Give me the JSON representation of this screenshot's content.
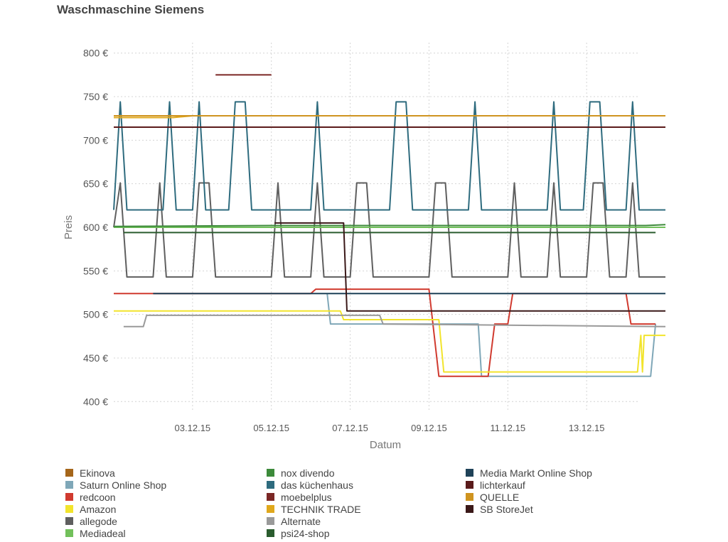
{
  "chart_data": {
    "type": "line",
    "title": "Waschmaschine Siemens",
    "xlabel": "Datum",
    "ylabel": "Preis",
    "ylim": [
      388,
      812
    ],
    "xlim": [
      "2015-12-01T00:00",
      "2015-12-15T00:00"
    ],
    "yticks": [
      400,
      450,
      500,
      550,
      600,
      650,
      700,
      750,
      800
    ],
    "ytick_labels": [
      "400 €",
      "450 €",
      "500 €",
      "550 €",
      "600 €",
      "650 €",
      "700 €",
      "750 €",
      "800 €"
    ],
    "xticks": [
      "2015-12-03",
      "2015-12-05",
      "2015-12-07",
      "2015-12-09",
      "2015-12-11",
      "2015-12-13"
    ],
    "xtick_labels": [
      "03.12.15",
      "05.12.15",
      "07.12.15",
      "09.12.15",
      "11.12.15",
      "13.12.15"
    ],
    "grid": true,
    "legend_position": "bottom",
    "series": [
      {
        "name": "Ekinova",
        "color": "#a5661a",
        "points": []
      },
      {
        "name": "Saturn Online Shop",
        "color": "#7fa7b8",
        "points": [
          [
            "2015-12-06T10:00",
            524
          ],
          [
            "2015-12-06T12:00",
            489
          ],
          [
            "2015-12-10T06:00",
            489
          ],
          [
            "2015-12-10T08:00",
            429
          ],
          [
            "2015-12-14T15:00",
            429
          ],
          [
            "2015-12-14T18:00",
            489
          ]
        ]
      },
      {
        "name": "redcoon",
        "color": "#d03a2f",
        "points": [
          [
            "2015-12-01T00:00",
            524
          ],
          [
            "2015-12-02T00:00",
            524
          ],
          [
            "2015-12-06T00:00",
            524
          ],
          [
            "2015-12-06T03:00",
            529
          ],
          [
            "2015-12-09T00:00",
            529
          ],
          [
            "2015-12-09T06:00",
            429
          ],
          [
            "2015-12-10T12:00",
            429
          ],
          [
            "2015-12-10T16:00",
            489
          ],
          [
            "2015-12-11T00:00",
            489
          ],
          [
            "2015-12-11T03:00",
            524
          ],
          [
            "2015-12-14T00:00",
            524
          ],
          [
            "2015-12-14T03:00",
            489
          ],
          [
            "2015-12-14T18:00",
            489
          ]
        ]
      },
      {
        "name": "Amazon",
        "color": "#f2e42c",
        "points": [
          [
            "2015-12-01T00:00",
            504
          ],
          [
            "2015-12-06T18:00",
            504
          ],
          [
            "2015-12-06T20:00",
            494
          ],
          [
            "2015-12-09T06:00",
            494
          ],
          [
            "2015-12-09T09:00",
            434
          ],
          [
            "2015-12-14T07:00",
            434
          ],
          [
            "2015-12-14T09:00",
            476
          ],
          [
            "2015-12-14T10:00",
            434
          ],
          [
            "2015-12-14T11:00",
            476
          ],
          [
            "2015-12-15T00:00",
            476
          ]
        ]
      },
      {
        "name": "allegode",
        "color": "#5f5f5f",
        "points": [
          [
            "2015-12-01T00:00",
            600
          ],
          [
            "2015-12-01T04:00",
            651
          ],
          [
            "2015-12-01T08:00",
            543
          ],
          [
            "2015-12-02T00:00",
            543
          ],
          [
            "2015-12-02T04:00",
            651
          ],
          [
            "2015-12-02T08:00",
            543
          ],
          [
            "2015-12-03T00:00",
            543
          ],
          [
            "2015-12-03T04:00",
            651
          ],
          [
            "2015-12-03T10:00",
            651
          ],
          [
            "2015-12-03T14:00",
            543
          ],
          [
            "2015-12-05T00:00",
            543
          ],
          [
            "2015-12-05T04:00",
            651
          ],
          [
            "2015-12-05T08:00",
            543
          ],
          [
            "2015-12-06T00:00",
            543
          ],
          [
            "2015-12-06T04:00",
            651
          ],
          [
            "2015-12-06T08:00",
            543
          ],
          [
            "2015-12-07T00:00",
            543
          ],
          [
            "2015-12-07T04:00",
            651
          ],
          [
            "2015-12-07T10:00",
            651
          ],
          [
            "2015-12-07T14:00",
            543
          ],
          [
            "2015-12-09T00:00",
            543
          ],
          [
            "2015-12-09T04:00",
            651
          ],
          [
            "2015-12-09T10:00",
            651
          ],
          [
            "2015-12-09T14:00",
            543
          ],
          [
            "2015-12-11T00:00",
            543
          ],
          [
            "2015-12-11T04:00",
            651
          ],
          [
            "2015-12-11T08:00",
            543
          ],
          [
            "2015-12-12T00:00",
            543
          ],
          [
            "2015-12-12T04:00",
            651
          ],
          [
            "2015-12-12T08:00",
            543
          ],
          [
            "2015-12-13T00:00",
            543
          ],
          [
            "2015-12-13T04:00",
            651
          ],
          [
            "2015-12-13T10:00",
            651
          ],
          [
            "2015-12-13T14:00",
            543
          ],
          [
            "2015-12-14T00:00",
            543
          ],
          [
            "2015-12-14T04:00",
            651
          ],
          [
            "2015-12-14T08:00",
            543
          ],
          [
            "2015-12-15T00:00",
            543
          ]
        ]
      },
      {
        "name": "Mediadeal",
        "color": "#72c05b",
        "points": [
          [
            "2015-12-01T00:00",
            600
          ],
          [
            "2015-12-15T00:00",
            600
          ]
        ]
      },
      {
        "name": "nox divendo",
        "color": "#3c8a3a",
        "points": [
          [
            "2015-12-01T00:00",
            601
          ],
          [
            "2015-12-05T00:00",
            602
          ],
          [
            "2015-12-14T12:00",
            602
          ],
          [
            "2015-12-15T00:00",
            603
          ]
        ]
      },
      {
        "name": "das küchenhaus",
        "color": "#2e6b7e",
        "points": [
          [
            "2015-12-01T00:00",
            620
          ],
          [
            "2015-12-01T04:00",
            744
          ],
          [
            "2015-12-01T08:00",
            620
          ],
          [
            "2015-12-02T06:00",
            620
          ],
          [
            "2015-12-02T10:00",
            744
          ],
          [
            "2015-12-02T14:00",
            620
          ],
          [
            "2015-12-03T00:00",
            620
          ],
          [
            "2015-12-03T04:00",
            744
          ],
          [
            "2015-12-03T08:00",
            620
          ],
          [
            "2015-12-03T22:00",
            620
          ],
          [
            "2015-12-04T02:00",
            744
          ],
          [
            "2015-12-04T08:00",
            744
          ],
          [
            "2015-12-04T12:00",
            620
          ],
          [
            "2015-12-06T00:00",
            620
          ],
          [
            "2015-12-06T04:00",
            744
          ],
          [
            "2015-12-06T08:00",
            620
          ],
          [
            "2015-12-08T00:00",
            620
          ],
          [
            "2015-12-08T04:00",
            744
          ],
          [
            "2015-12-08T10:00",
            744
          ],
          [
            "2015-12-08T14:00",
            620
          ],
          [
            "2015-12-10T00:00",
            620
          ],
          [
            "2015-12-10T04:00",
            744
          ],
          [
            "2015-12-10T08:00",
            620
          ],
          [
            "2015-12-12T00:00",
            620
          ],
          [
            "2015-12-12T04:00",
            744
          ],
          [
            "2015-12-12T08:00",
            620
          ],
          [
            "2015-12-12T22:00",
            620
          ],
          [
            "2015-12-13T02:00",
            744
          ],
          [
            "2015-12-13T08:00",
            744
          ],
          [
            "2015-12-13T12:00",
            620
          ],
          [
            "2015-12-14T00:00",
            620
          ],
          [
            "2015-12-14T04:00",
            744
          ],
          [
            "2015-12-14T08:00",
            620
          ],
          [
            "2015-12-15T00:00",
            620
          ]
        ]
      },
      {
        "name": "moebelplus",
        "color": "#7b2725",
        "points": [
          [
            "2015-12-03T14:00",
            775
          ],
          [
            "2015-12-05T00:00",
            775
          ]
        ]
      },
      {
        "name": "TECHNIK TRADE",
        "color": "#e0a81c",
        "points": [
          [
            "2015-12-01T00:00",
            726
          ],
          [
            "2015-12-02T12:00",
            726
          ],
          [
            "2015-12-03T00:00",
            728
          ],
          [
            "2015-12-15T00:00",
            728
          ]
        ]
      },
      {
        "name": "Alternate",
        "color": "#9a9a9a",
        "points": [
          [
            "2015-12-01T06:00",
            486
          ],
          [
            "2015-12-01T18:00",
            486
          ],
          [
            "2015-12-01T20:00",
            499
          ],
          [
            "2015-12-07T18:00",
            499
          ],
          [
            "2015-12-07T20:00",
            489
          ],
          [
            "2015-12-15T00:00",
            486
          ]
        ]
      },
      {
        "name": "psi24-shop",
        "color": "#2a5c2e",
        "points": [
          [
            "2015-12-01T06:00",
            594
          ],
          [
            "2015-12-14T18:00",
            594
          ]
        ]
      },
      {
        "name": "Media Markt Online Shop",
        "color": "#1f4258",
        "points": [
          [
            "2015-12-02T00:00",
            524
          ],
          [
            "2015-12-15T00:00",
            524
          ]
        ]
      },
      {
        "name": "lichterkauf",
        "color": "#5a1a1a",
        "points": [
          [
            "2015-12-01T00:00",
            715
          ],
          [
            "2015-12-15T00:00",
            715
          ]
        ]
      },
      {
        "name": "QUELLE",
        "color": "#cf9420",
        "points": [
          [
            "2015-12-01T00:00",
            728
          ],
          [
            "2015-12-15T00:00",
            728
          ]
        ]
      },
      {
        "name": "SB StoreJet",
        "color": "#3a1818",
        "points": [
          [
            "2015-12-05T02:00",
            605
          ],
          [
            "2015-12-06T20:00",
            605
          ],
          [
            "2015-12-06T22:00",
            504
          ],
          [
            "2015-12-15T00:00",
            504
          ]
        ]
      }
    ]
  }
}
